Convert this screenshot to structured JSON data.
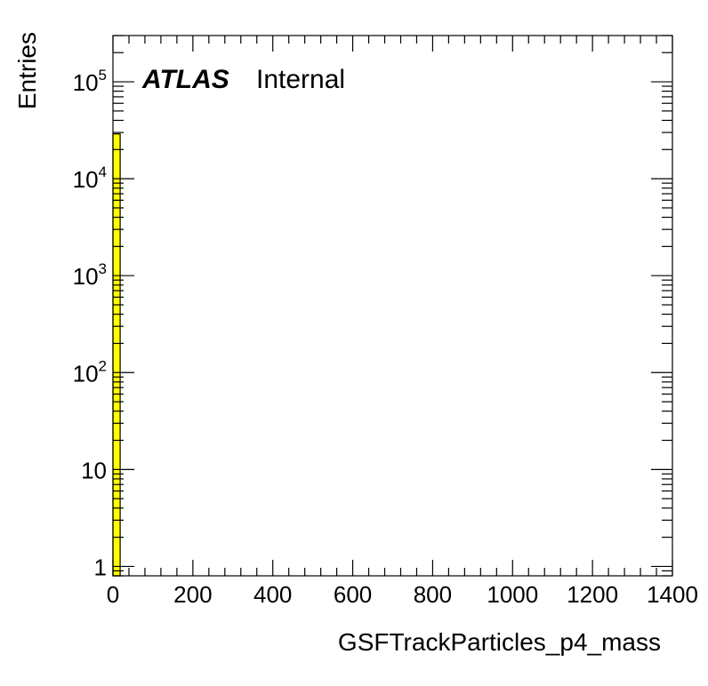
{
  "chart_data": {
    "type": "bar",
    "title": "",
    "xlabel": "GSFTrackParticles_p4_mass",
    "ylabel": "Entries",
    "xlim": [
      0,
      1400
    ],
    "ylim": [
      0.8,
      300000
    ],
    "yscale": "log",
    "grid": false,
    "x_tick_labels": [
      "0",
      "200",
      "400",
      "600",
      "800",
      "1000",
      "1200",
      "1400"
    ],
    "y_tick_labels": [
      {
        "value": 1,
        "base": "1",
        "exp": ""
      },
      {
        "value": 10,
        "base": "10",
        "exp": ""
      },
      {
        "value": 100,
        "base": "10",
        "exp": "2"
      },
      {
        "value": 1000,
        "base": "10",
        "exp": "3"
      },
      {
        "value": 10000,
        "base": "10",
        "exp": "4"
      },
      {
        "value": 100000,
        "base": "10",
        "exp": "5"
      }
    ],
    "bins": [
      {
        "x_low": 0,
        "x_high": 18,
        "value": 29000
      }
    ],
    "fill_color": "#ffff00",
    "line_color": "#000000",
    "label_main": "ATLAS",
    "label_sub": "Internal"
  }
}
